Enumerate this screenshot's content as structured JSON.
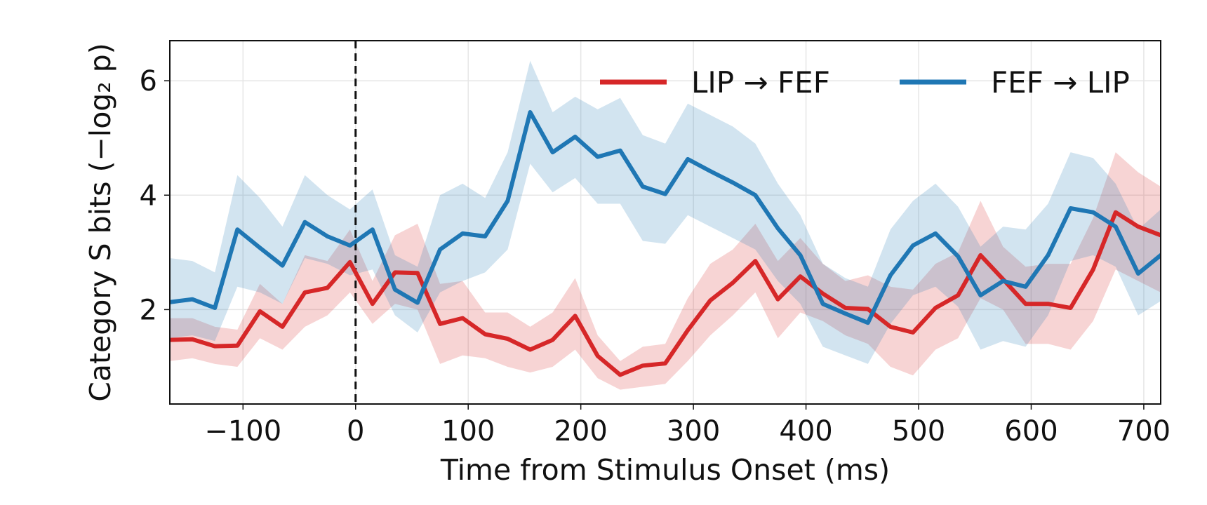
{
  "chart_data": {
    "type": "line",
    "title": "",
    "xlabel": "Time from Stimulus Onset (ms)",
    "ylabel": "Category S bits (−log₂ p)",
    "xlim": [
      -165,
      715
    ],
    "ylim": [
      0.35,
      6.7
    ],
    "xticks": [
      -100,
      0,
      100,
      200,
      300,
      400,
      500,
      600,
      700
    ],
    "xtick_labels": [
      "−100",
      "0",
      "100",
      "200",
      "300",
      "400",
      "500",
      "600",
      "700"
    ],
    "yticks": [
      2,
      4,
      6
    ],
    "ytick_labels": [
      "2",
      "4",
      "6"
    ],
    "grid": true,
    "legend_position": "top-right",
    "vline": {
      "x": 0,
      "style": "dashed",
      "color": "#111111"
    },
    "x": [
      -165,
      -145,
      -125,
      -105,
      -85,
      -65,
      -45,
      -25,
      -5,
      15,
      35,
      55,
      75,
      95,
      115,
      135,
      155,
      175,
      195,
      215,
      235,
      255,
      275,
      295,
      315,
      335,
      355,
      375,
      395,
      415,
      435,
      455,
      475,
      495,
      515,
      535,
      555,
      575,
      595,
      615,
      635,
      655,
      675,
      695,
      715
    ],
    "series": [
      {
        "name": "LIP → FEF",
        "color": "#d62728",
        "values": [
          1.47,
          1.48,
          1.36,
          1.37,
          1.97,
          1.7,
          2.3,
          2.38,
          2.83,
          2.1,
          2.65,
          2.64,
          1.75,
          1.85,
          1.57,
          1.49,
          1.3,
          1.47,
          1.89,
          1.19,
          0.86,
          1.02,
          1.06,
          1.64,
          2.16,
          2.47,
          2.85,
          2.18,
          2.58,
          2.28,
          2.03,
          2.01,
          1.7,
          1.6,
          2.03,
          2.25,
          2.95,
          2.53,
          2.1,
          2.1,
          2.03,
          2.7,
          3.7,
          3.45,
          3.3
        ],
        "lower": [
          1.1,
          1.15,
          1.05,
          1.0,
          1.5,
          1.3,
          1.7,
          1.9,
          2.3,
          1.75,
          2.1,
          2.0,
          1.05,
          1.2,
          1.15,
          1.0,
          0.9,
          1.0,
          1.3,
          0.8,
          0.6,
          0.65,
          0.7,
          1.1,
          1.55,
          1.9,
          2.3,
          1.5,
          1.95,
          1.8,
          1.55,
          1.4,
          1.0,
          0.85,
          1.3,
          1.5,
          2.2,
          2.0,
          1.4,
          1.4,
          1.3,
          1.8,
          2.7,
          2.5,
          2.3
        ],
        "upper": [
          1.85,
          1.85,
          1.7,
          1.65,
          2.45,
          2.1,
          2.95,
          2.85,
          3.4,
          2.5,
          3.3,
          3.5,
          2.45,
          2.5,
          1.95,
          1.95,
          1.7,
          1.95,
          2.55,
          1.55,
          1.1,
          1.35,
          1.4,
          2.2,
          2.8,
          3.05,
          3.5,
          2.85,
          3.25,
          2.8,
          2.5,
          2.6,
          2.4,
          2.35,
          2.8,
          3.0,
          3.9,
          3.1,
          2.75,
          2.8,
          2.8,
          3.6,
          4.75,
          4.4,
          4.15
        ]
      },
      {
        "name": "FEF → LIP",
        "color": "#1f77b4",
        "values": [
          2.13,
          2.18,
          2.03,
          3.4,
          3.08,
          2.77,
          3.53,
          3.28,
          3.12,
          3.4,
          2.35,
          2.12,
          3.05,
          3.33,
          3.28,
          3.9,
          5.45,
          4.75,
          5.02,
          4.67,
          4.78,
          4.15,
          4.02,
          4.63,
          4.42,
          4.22,
          4.0,
          3.42,
          2.95,
          2.1,
          1.93,
          1.77,
          2.6,
          3.12,
          3.33,
          2.93,
          2.25,
          2.5,
          2.4,
          2.95,
          3.77,
          3.7,
          3.45,
          2.63,
          2.95
        ],
        "lower": [
          1.5,
          1.55,
          1.45,
          2.4,
          2.3,
          2.1,
          2.9,
          2.8,
          2.6,
          2.7,
          1.9,
          1.6,
          2.3,
          2.5,
          2.65,
          3.05,
          4.55,
          4.05,
          4.3,
          3.85,
          3.85,
          3.2,
          3.15,
          3.65,
          3.45,
          3.25,
          3.05,
          2.5,
          2.1,
          1.35,
          1.2,
          1.05,
          1.75,
          2.25,
          2.4,
          2.05,
          1.3,
          1.45,
          1.35,
          1.9,
          2.85,
          2.95,
          2.75,
          1.9,
          2.15
        ],
        "upper": [
          2.9,
          2.85,
          2.65,
          4.35,
          3.95,
          3.45,
          4.35,
          4.0,
          3.75,
          4.1,
          2.95,
          2.75,
          4.0,
          4.2,
          3.95,
          4.75,
          6.35,
          5.45,
          5.72,
          5.5,
          5.7,
          5.05,
          4.9,
          5.6,
          5.4,
          5.2,
          4.9,
          4.2,
          3.65,
          2.8,
          2.55,
          2.4,
          3.4,
          3.9,
          4.2,
          3.8,
          3.1,
          3.45,
          3.4,
          3.85,
          4.75,
          4.65,
          4.2,
          3.4,
          3.75
        ]
      }
    ]
  }
}
